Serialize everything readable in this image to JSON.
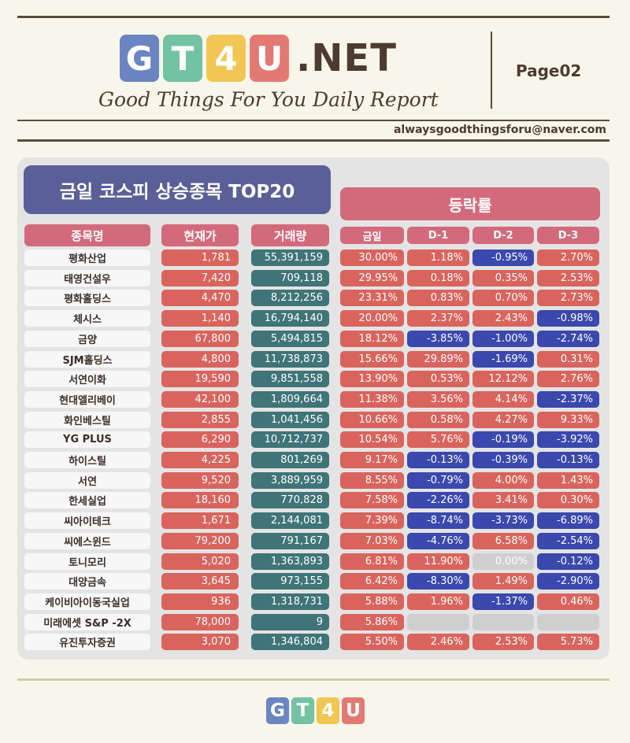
{
  "brand": {
    "tiles": [
      "G",
      "T",
      "4",
      "U"
    ],
    "tile_colors": [
      "#6a85c2",
      "#73c2a3",
      "#f1c654",
      "#e27a73"
    ],
    "suffix": ".NET",
    "tagline": "Good Things For You Daily Report",
    "page": "Page02",
    "email": "alwaysgoodthingsforu@naver.com"
  },
  "report": {
    "title": "금일 코스피 상승종목 TOP20",
    "rate_group_label": "등락률",
    "headers": {
      "name": "종목명",
      "price": "현재가",
      "volume": "거래량",
      "today": "금일",
      "d1": "D-1",
      "d2": "D-2",
      "d3": "D-3"
    },
    "rows": [
      {
        "name": "평화산업",
        "price": "1,781",
        "volume": "55,391,159",
        "rates": [
          "30.00%",
          "1.18%",
          "-0.95%",
          "2.70%"
        ]
      },
      {
        "name": "태영건설우",
        "price": "7,420",
        "volume": "709,118",
        "rates": [
          "29.95%",
          "0.18%",
          "0.35%",
          "2.53%"
        ]
      },
      {
        "name": "평화홀딩스",
        "price": "4,470",
        "volume": "8,212,256",
        "rates": [
          "23.31%",
          "0.83%",
          "0.70%",
          "2.73%"
        ]
      },
      {
        "name": "체시스",
        "price": "1,140",
        "volume": "16,794,140",
        "rates": [
          "20.00%",
          "2.37%",
          "2.43%",
          "-0.98%"
        ]
      },
      {
        "name": "금양",
        "price": "67,800",
        "volume": "5,494,815",
        "rates": [
          "18.12%",
          "-3.85%",
          "-1.00%",
          "-2.74%"
        ]
      },
      {
        "name": "SJM홀딩스",
        "price": "4,800",
        "volume": "11,738,873",
        "rates": [
          "15.66%",
          "29.89%",
          "-1.69%",
          "0.31%"
        ]
      },
      {
        "name": "서연이화",
        "price": "19,590",
        "volume": "9,851,558",
        "rates": [
          "13.90%",
          "0.53%",
          "12.12%",
          "2.76%"
        ]
      },
      {
        "name": "현대엘리베이",
        "price": "42,100",
        "volume": "1,809,664",
        "rates": [
          "11.38%",
          "3.56%",
          "4.14%",
          "-2.37%"
        ]
      },
      {
        "name": "화인베스틸",
        "price": "2,855",
        "volume": "1,041,456",
        "rates": [
          "10.66%",
          "0.58%",
          "4.27%",
          "9.33%"
        ]
      },
      {
        "name": "YG PLUS",
        "price": "6,290",
        "volume": "10,712,737",
        "rates": [
          "10.54%",
          "5.76%",
          "-0.19%",
          "-3.92%"
        ]
      },
      {
        "name": "하이스틸",
        "price": "4,225",
        "volume": "801,269",
        "rates": [
          "9.17%",
          "-0.13%",
          "-0.39%",
          "-0.13%"
        ]
      },
      {
        "name": "서연",
        "price": "9,520",
        "volume": "3,889,959",
        "rates": [
          "8.55%",
          "-0.79%",
          "4.00%",
          "1.43%"
        ]
      },
      {
        "name": "한세실업",
        "price": "18,160",
        "volume": "770,828",
        "rates": [
          "7.58%",
          "-2.26%",
          "3.41%",
          "0.30%"
        ]
      },
      {
        "name": "씨아이테크",
        "price": "1,671",
        "volume": "2,144,081",
        "rates": [
          "7.39%",
          "-8.74%",
          "-3.73%",
          "-6.89%"
        ]
      },
      {
        "name": "씨에스윈드",
        "price": "79,200",
        "volume": "791,167",
        "rates": [
          "7.03%",
          "-4.76%",
          "6.58%",
          "-2.54%"
        ]
      },
      {
        "name": "토니모리",
        "price": "5,020",
        "volume": "1,363,893",
        "rates": [
          "6.81%",
          "11.90%",
          "0.00%",
          "-0.12%"
        ]
      },
      {
        "name": "대양금속",
        "price": "3,645",
        "volume": "973,155",
        "rates": [
          "6.42%",
          "-8.30%",
          "1.49%",
          "-2.90%"
        ]
      },
      {
        "name": "케이비아이동국실업",
        "price": "936",
        "volume": "1,318,731",
        "rates": [
          "5.88%",
          "1.96%",
          "-1.37%",
          "0.46%"
        ]
      },
      {
        "name": "미래에셋 S&P -2X",
        "price": "78,000",
        "volume": "9",
        "rates": [
          "5.86%",
          "",
          "",
          ""
        ]
      },
      {
        "name": "유진투자증권",
        "price": "3,070",
        "volume": "1,346,804",
        "rates": [
          "5.50%",
          "2.46%",
          "2.53%",
          "5.73%"
        ]
      }
    ]
  },
  "footer": {
    "tiles": [
      "G",
      "T",
      "4",
      "U"
    ]
  }
}
